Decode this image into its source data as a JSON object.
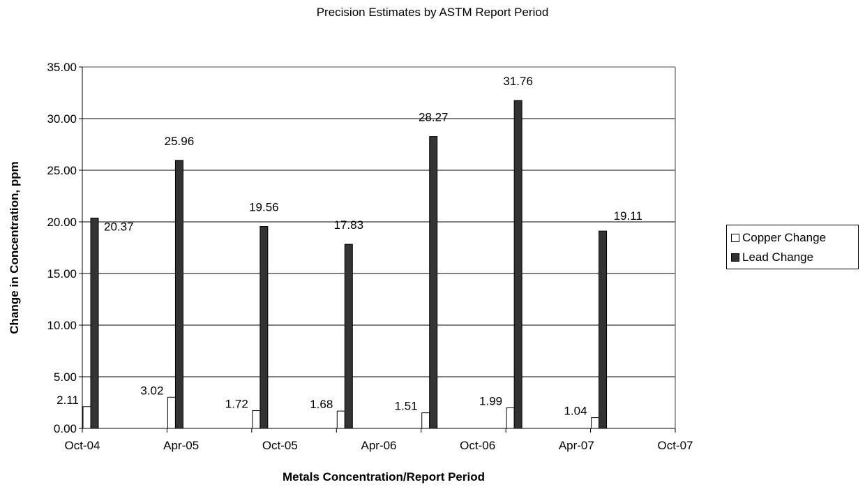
{
  "chart_data": {
    "type": "bar",
    "title": "Precision Estimates by ASTM Report Period",
    "xlabel": "Metals Concentration/Report Period",
    "ylabel": "Change in Concentration, ppm",
    "categories": [
      "Oct-04",
      "Apr-05",
      "Oct-05",
      "Apr-06",
      "Oct-06",
      "Apr-07",
      "Oct-07"
    ],
    "series": [
      {
        "name": "Copper Change",
        "values": [
          2.11,
          3.02,
          1.72,
          1.68,
          1.51,
          1.99,
          1.04
        ],
        "color": "#ffffff",
        "labels": [
          "2.11",
          "3.02",
          "1.72",
          "1.68",
          "1.51",
          "1.99",
          "1.04"
        ]
      },
      {
        "name": "Lead Change",
        "values": [
          20.37,
          25.96,
          19.56,
          17.83,
          28.27,
          31.76,
          19.11
        ],
        "color": "#333333",
        "labels": [
          "20.37",
          "25.96",
          "19.56",
          "17.83",
          "28.27",
          "31.76",
          "19.11"
        ]
      }
    ],
    "ylim": [
      0,
      35
    ],
    "yticks": [
      "0.00",
      "5.00",
      "10.00",
      "15.00",
      "20.00",
      "25.00",
      "30.00",
      "35.00"
    ],
    "grid": true,
    "legend": "right"
  }
}
